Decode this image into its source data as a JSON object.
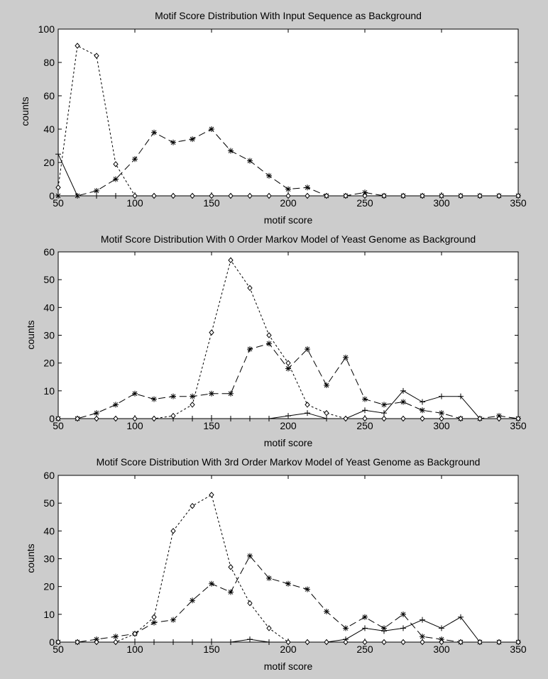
{
  "figure": {
    "background": "#cccccc",
    "axes_background": "#ffffff",
    "ink": "#000000"
  },
  "chart_data": [
    {
      "type": "line",
      "title": "Motif Score Distribution With Input Sequence as Background",
      "xlabel": "motif score",
      "ylabel": "counts",
      "xlim": [
        50,
        350
      ],
      "ylim": [
        0,
        100
      ],
      "xticks": [
        50,
        100,
        150,
        200,
        250,
        300,
        350
      ],
      "yticks": [
        0,
        20,
        40,
        60,
        80,
        100
      ],
      "grid": false,
      "series": [
        {
          "marker": "plus",
          "dash": "solid",
          "x": [
            50,
            62.5,
            75,
            87.5,
            100,
            112.5,
            125,
            137.5,
            150,
            162.5,
            175,
            187.5,
            200,
            212.5,
            225,
            237.5,
            250,
            262.5,
            275,
            287.5,
            300,
            312.5,
            325,
            337.5,
            350
          ],
          "y": [
            25,
            0,
            0,
            0,
            0,
            0,
            0,
            0,
            0,
            0,
            0,
            0,
            0,
            0,
            0,
            0,
            0,
            0,
            0,
            0,
            0,
            0,
            0,
            0,
            0
          ]
        },
        {
          "marker": "star",
          "dash": "dashed",
          "x": [
            50,
            62.5,
            75,
            87.5,
            100,
            112.5,
            125,
            137.5,
            150,
            162.5,
            175,
            187.5,
            200,
            212.5,
            225,
            237.5,
            250,
            262.5,
            275,
            287.5,
            300,
            312.5,
            325,
            337.5,
            350
          ],
          "y": [
            0,
            0,
            3,
            10,
            22,
            38,
            32,
            34,
            40,
            27,
            21,
            12,
            4,
            5,
            0,
            0,
            2,
            0,
            0,
            0,
            0,
            0,
            0,
            0,
            0
          ]
        },
        {
          "marker": "diamond",
          "dash": "dotted",
          "x": [
            50,
            62.5,
            75,
            87.5,
            100,
            112.5,
            125,
            137.5,
            150,
            162.5,
            175,
            187.5,
            200,
            212.5,
            225,
            237.5,
            250,
            262.5,
            275,
            287.5,
            300,
            312.5,
            325,
            337.5,
            350
          ],
          "y": [
            5,
            90,
            84,
            19,
            0,
            0,
            0,
            0,
            0,
            0,
            0,
            0,
            0,
            0,
            0,
            0,
            0,
            0,
            0,
            0,
            0,
            0,
            0,
            0,
            0
          ]
        }
      ]
    },
    {
      "type": "line",
      "title": "Motif Score Distribution With 0 Order Markov Model of Yeast Genome as Background",
      "xlabel": "motif score",
      "ylabel": "counts",
      "xlim": [
        50,
        350
      ],
      "ylim": [
        0,
        60
      ],
      "xticks": [
        50,
        100,
        150,
        200,
        250,
        300,
        350
      ],
      "yticks": [
        0,
        10,
        20,
        30,
        40,
        50,
        60
      ],
      "grid": false,
      "series": [
        {
          "marker": "plus",
          "dash": "solid",
          "x": [
            50,
            62.5,
            75,
            87.5,
            100,
            112.5,
            125,
            137.5,
            150,
            162.5,
            175,
            187.5,
            200,
            212.5,
            225,
            237.5,
            250,
            262.5,
            275,
            287.5,
            300,
            312.5,
            325,
            337.5,
            350
          ],
          "y": [
            0,
            0,
            0,
            0,
            0,
            0,
            0,
            0,
            0,
            0,
            0,
            0,
            1,
            2,
            0,
            0,
            3,
            2,
            10,
            6,
            8,
            8,
            0,
            0,
            0
          ]
        },
        {
          "marker": "star",
          "dash": "dashed",
          "x": [
            50,
            62.5,
            75,
            87.5,
            100,
            112.5,
            125,
            137.5,
            150,
            162.5,
            175,
            187.5,
            200,
            212.5,
            225,
            237.5,
            250,
            262.5,
            275,
            287.5,
            300,
            312.5,
            325,
            337.5,
            350
          ],
          "y": [
            0,
            0,
            2,
            5,
            9,
            7,
            8,
            8,
            9,
            9,
            25,
            27,
            18,
            25,
            12,
            22,
            7,
            5,
            6,
            3,
            2,
            0,
            0,
            1,
            0
          ]
        },
        {
          "marker": "diamond",
          "dash": "dotted",
          "x": [
            50,
            62.5,
            75,
            87.5,
            100,
            112.5,
            125,
            137.5,
            150,
            162.5,
            175,
            187.5,
            200,
            212.5,
            225,
            237.5,
            250,
            262.5,
            275,
            287.5,
            300,
            312.5,
            325,
            337.5,
            350
          ],
          "y": [
            0,
            0,
            0,
            0,
            0,
            0,
            1,
            5,
            31,
            57,
            47,
            30,
            20,
            5,
            2,
            0,
            0,
            0,
            0,
            0,
            0,
            0,
            0,
            0,
            0
          ]
        }
      ]
    },
    {
      "type": "line",
      "title": "Motif Score Distribution With 3rd Order Markov Model of Yeast Genome as Background",
      "xlabel": "motif score",
      "ylabel": "counts",
      "xlim": [
        50,
        350
      ],
      "ylim": [
        0,
        60
      ],
      "xticks": [
        50,
        100,
        150,
        200,
        250,
        300,
        350
      ],
      "yticks": [
        0,
        10,
        20,
        30,
        40,
        50,
        60
      ],
      "grid": false,
      "series": [
        {
          "marker": "plus",
          "dash": "solid",
          "x": [
            50,
            62.5,
            75,
            87.5,
            100,
            112.5,
            125,
            137.5,
            150,
            162.5,
            175,
            187.5,
            200,
            212.5,
            225,
            237.5,
            250,
            262.5,
            275,
            287.5,
            300,
            312.5,
            325,
            337.5,
            350
          ],
          "y": [
            0,
            0,
            0,
            0,
            0,
            0,
            0,
            0,
            0,
            0,
            1,
            0,
            0,
            0,
            0,
            1,
            5,
            4,
            5,
            8,
            5,
            9,
            0,
            0,
            0
          ]
        },
        {
          "marker": "star",
          "dash": "dashed",
          "x": [
            50,
            62.5,
            75,
            87.5,
            100,
            112.5,
            125,
            137.5,
            150,
            162.5,
            175,
            187.5,
            200,
            212.5,
            225,
            237.5,
            250,
            262.5,
            275,
            287.5,
            300,
            312.5,
            325,
            337.5,
            350
          ],
          "y": [
            0,
            0,
            1,
            2,
            3,
            7,
            8,
            15,
            21,
            18,
            31,
            23,
            21,
            19,
            11,
            5,
            9,
            5,
            10,
            2,
            1,
            0,
            0,
            0,
            0
          ]
        },
        {
          "marker": "diamond",
          "dash": "dotted",
          "x": [
            50,
            62.5,
            75,
            87.5,
            100,
            112.5,
            125,
            137.5,
            150,
            162.5,
            175,
            187.5,
            200,
            212.5,
            225,
            237.5,
            250,
            262.5,
            275,
            287.5,
            300,
            312.5,
            325,
            337.5,
            350
          ],
          "y": [
            0,
            0,
            0,
            0,
            3,
            9,
            40,
            49,
            53,
            27,
            14,
            5,
            0,
            0,
            0,
            0,
            0,
            0,
            0,
            0,
            0,
            0,
            0,
            0,
            0
          ]
        }
      ]
    }
  ]
}
